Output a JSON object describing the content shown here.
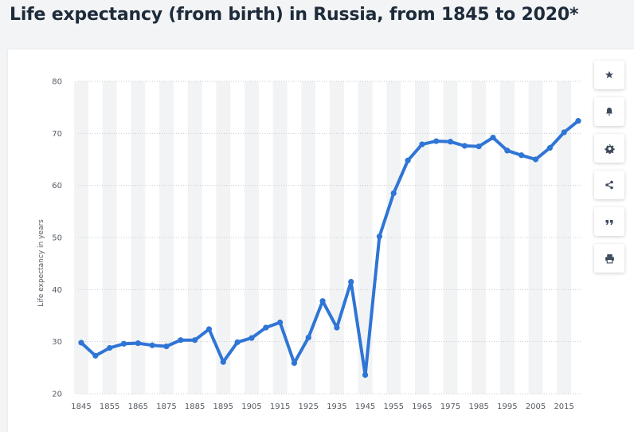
{
  "title": "Life expectancy (from birth) in Russia, from 1845 to 2020*",
  "toolbar": {
    "icons": [
      "star-icon",
      "bell-icon",
      "gear-icon",
      "share-icon",
      "quote-icon",
      "print-icon"
    ]
  },
  "colors": {
    "line": "#2f75d6",
    "band": "#f2f3f4",
    "grid": "#c9ccd1",
    "title": "#1d2b3a"
  },
  "chart_data": {
    "type": "line",
    "title": "",
    "xlabel": "",
    "ylabel": "Life expectancy in years",
    "ylim": [
      20,
      80
    ],
    "yticks": [
      20,
      30,
      40,
      50,
      60,
      70,
      80
    ],
    "xtick_labels": [
      "1845",
      "1855",
      "1865",
      "1875",
      "1885",
      "1895",
      "1905",
      "1915",
      "1925",
      "1935",
      "1945",
      "1955",
      "1965",
      "1975",
      "1985",
      "1995",
      "2005",
      "2015"
    ],
    "grid": true,
    "legend": "none",
    "series": [
      {
        "x": [
          1845,
          1850,
          1855,
          1860,
          1865,
          1870,
          1875,
          1880,
          1885,
          1890,
          1895,
          1900,
          1905,
          1910,
          1915,
          1920,
          1925,
          1930,
          1935,
          1940,
          1945,
          1950,
          1955,
          1960,
          1965,
          1970,
          1975,
          1980,
          1985,
          1990,
          1995,
          2000,
          2005,
          2010,
          2015,
          2020
        ],
        "values": [
          29.8,
          27.3,
          28.8,
          29.6,
          29.7,
          29.3,
          29.1,
          30.3,
          30.3,
          32.4,
          26.1,
          29.9,
          30.7,
          32.7,
          33.7,
          25.9,
          30.8,
          37.8,
          32.7,
          41.5,
          23.6,
          50.2,
          58.5,
          64.8,
          67.9,
          68.5,
          68.4,
          67.6,
          67.5,
          69.2,
          66.7,
          65.8,
          65.0,
          67.2,
          70.2,
          72.4
        ]
      }
    ]
  }
}
